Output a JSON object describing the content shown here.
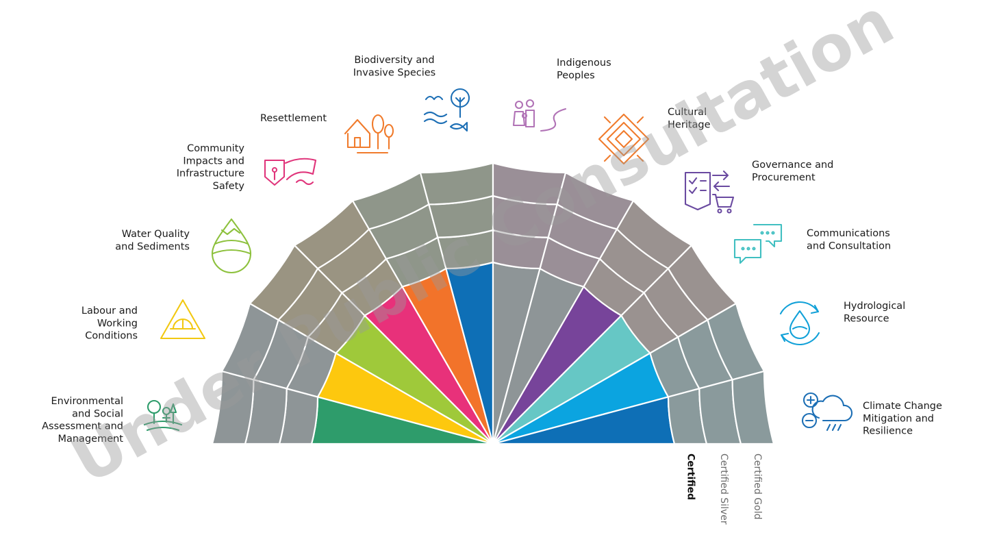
{
  "watermark": "Under Public Consultation",
  "tiers": [
    {
      "label": "Certified",
      "bold": true
    },
    {
      "label": "Certified Silver",
      "bold": false
    },
    {
      "label": "Certified Gold",
      "bold": false
    }
  ],
  "colors": {
    "inactive_sector": "#8e9597",
    "outer_ring_palette": [
      "#8e9597",
      "#9a9482",
      "#8f968a",
      "#9a8f97",
      "#9a9290",
      "#8a9a9c"
    ],
    "divider": "#ffffff"
  },
  "topics": [
    {
      "id": "environmental-social-assessment",
      "label_lines": [
        "Environmental",
        "and Social",
        "Assessment and",
        "Management"
      ],
      "level": 1,
      "color": "#2e9c6b",
      "icon": "tree-person-icon",
      "icon_color": "#2e9c6b"
    },
    {
      "id": "labour-working-conditions",
      "label_lines": [
        "Labour and",
        "Working",
        "Conditions"
      ],
      "level": 1,
      "color": "#fdc80e",
      "icon": "hardhat-warning-icon",
      "icon_color": "#f2c811"
    },
    {
      "id": "water-quality-sediments",
      "label_lines": [
        "Water Quality",
        "and Sediments"
      ],
      "level": 1,
      "color": "#9fc93a",
      "icon": "water-drop-layers-icon",
      "icon_color": "#8dc13d"
    },
    {
      "id": "community-impacts-safety",
      "label_lines": [
        "Community",
        "Impacts and",
        "Infrastructure",
        "Safety"
      ],
      "level": 1,
      "color": "#e8317a",
      "icon": "dam-shelter-icon",
      "icon_color": "#e0357b"
    },
    {
      "id": "resettlement",
      "label_lines": [
        "Resettlement"
      ],
      "level": 1,
      "color": "#f2732a",
      "icon": "house-trees-icon",
      "icon_color": "#f07b2c"
    },
    {
      "id": "biodiversity-invasive-species",
      "label_lines": [
        "Biodiversity and",
        "Invasive Species"
      ],
      "level": 1,
      "color": "#0e6fb6",
      "icon": "bird-tree-fish-icon",
      "icon_color": "#1d6fb5"
    },
    {
      "id": "indigenous-peoples",
      "label_lines": [
        "Indigenous",
        "Peoples"
      ],
      "level": 0,
      "color": "#8e9597",
      "icon": "family-path-icon",
      "icon_color": "#b173b6"
    },
    {
      "id": "cultural-heritage",
      "label_lines": [
        "Cultural",
        "Heritage"
      ],
      "level": 0,
      "color": "#8e9597",
      "icon": "diamond-pattern-icon",
      "icon_color": "#f07b2c"
    },
    {
      "id": "governance-procurement",
      "label_lines": [
        "Governance and",
        "Procurement"
      ],
      "level": 1,
      "color": "#77449a",
      "icon": "checklist-cart-icon",
      "icon_color": "#6a4aa0"
    },
    {
      "id": "communications-consultation",
      "label_lines": [
        "Communications",
        "and Consultation"
      ],
      "level": 1,
      "color": "#66c7c5",
      "icon": "speech-bubbles-icon",
      "icon_color": "#40bfc1"
    },
    {
      "id": "hydrological-resource",
      "label_lines": [
        "Hydrological",
        "Resource"
      ],
      "level": 1,
      "color": "#0ba4e0",
      "icon": "water-cycle-icon",
      "icon_color": "#12a1d8"
    },
    {
      "id": "climate-change",
      "label_lines": [
        "Climate Change",
        "Mitigation and",
        "Resilience"
      ],
      "level": 1,
      "color": "#0e6fb6",
      "icon": "cloud-plus-minus-icon",
      "icon_color": "#1d6fb5"
    }
  ]
}
